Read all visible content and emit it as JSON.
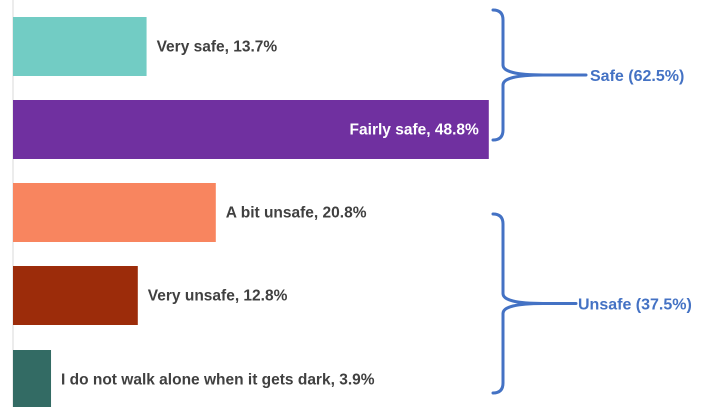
{
  "chart_data": {
    "type": "bar",
    "orientation": "horizontal",
    "categories": [
      "Very safe",
      "Fairly safe",
      "A bit unsafe",
      "Very unsafe",
      "I do not walk alone when it gets dark"
    ],
    "values": [
      13.7,
      48.8,
      20.8,
      12.8,
      3.9
    ],
    "data_labels": [
      "Very safe, 13.7%",
      "Fairly safe, 48.8%",
      "A bit unsafe, 20.8%",
      "Very unsafe, 12.8%",
      "I do not walk alone when it gets dark, 3.9%"
    ],
    "colors": [
      "#72ccc4",
      "#7030a0",
      "#f8855f",
      "#9c2c0a",
      "#336b64"
    ],
    "label_colors": [
      "#404040",
      "#ffffff",
      "#404040",
      "#404040",
      "#404040"
    ],
    "xlim": [
      0,
      50
    ],
    "grid": false,
    "groups": [
      {
        "label": "Safe (62.5%)",
        "members": [
          0,
          1
        ]
      },
      {
        "label": "Unsafe (37.5%)",
        "members": [
          2,
          3,
          4
        ]
      }
    ],
    "bracket_color": "#4472c4",
    "label_text_color": "#404040"
  }
}
